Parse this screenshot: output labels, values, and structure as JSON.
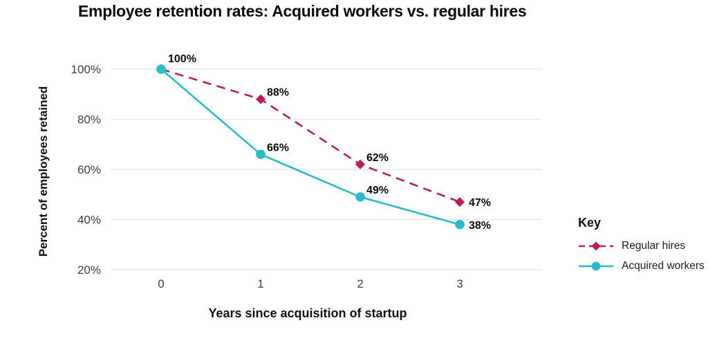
{
  "chart_data": {
    "type": "line",
    "title": "Employee retention rates: Acquired workers vs. regular hires",
    "xlabel": "Years since acquisition of startup",
    "ylabel": "Percent of employees retained",
    "x": [
      0,
      1,
      2,
      3
    ],
    "x_tick_labels": [
      "0",
      "1",
      "2",
      "3"
    ],
    "yticks": [
      20,
      40,
      60,
      80,
      100
    ],
    "ytick_labels": [
      "20%",
      "40%",
      "60%",
      "80%",
      "100%"
    ],
    "ylim": [
      20,
      100
    ],
    "grid": "horizontal-only",
    "legend": {
      "title": "Key",
      "position": "right"
    },
    "series": [
      {
        "name": "Regular hires",
        "values": [
          100,
          88,
          62,
          47
        ],
        "labels": [
          "",
          "88%",
          "62%",
          "47%"
        ],
        "color": "#C2185B",
        "line_style": "dashed",
        "marker": "diamond"
      },
      {
        "name": "Acquired workers",
        "values": [
          100,
          66,
          49,
          38
        ],
        "labels": [
          "100%",
          "66%",
          "49%",
          "38%"
        ],
        "color": "#24BDC8",
        "line_style": "solid",
        "marker": "circle"
      }
    ]
  },
  "colors": {
    "grid": "#E4E4E4",
    "tick_text": "#3D3D3D",
    "data_label": "#0B0B0B",
    "background": "#FFFFFF"
  }
}
